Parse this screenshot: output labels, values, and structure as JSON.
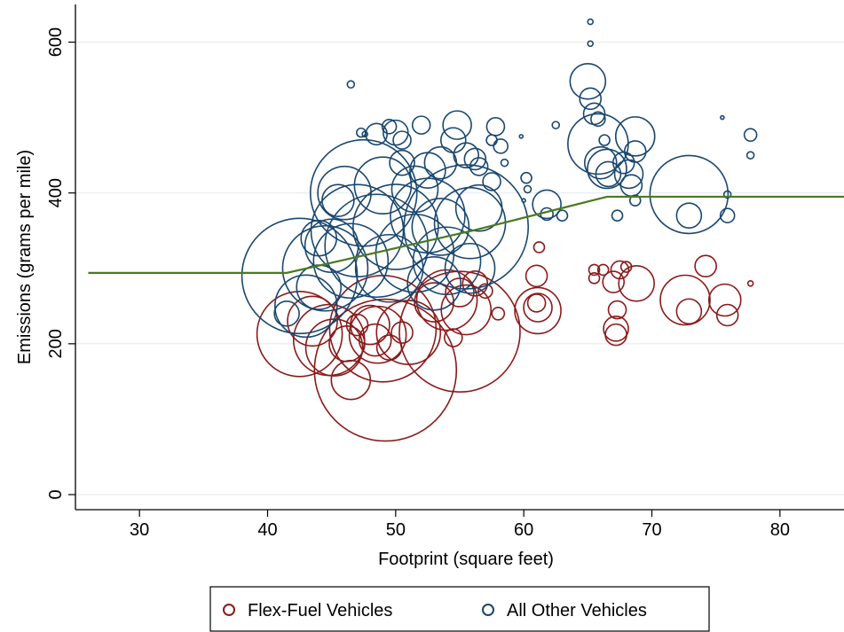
{
  "chart_data": {
    "type": "scatter",
    "title": "",
    "xlabel": "Footprint (square feet)",
    "ylabel": "Emissions (grams per mile)",
    "xlim": [
      25,
      85
    ],
    "ylim": [
      -20,
      650
    ],
    "xticks": [
      30,
      40,
      50,
      60,
      70,
      80
    ],
    "yticks": [
      0,
      200,
      400,
      600
    ],
    "grid": "horizontal",
    "legend": "bottom",
    "series": [
      {
        "name": "Flex-Fuel Vehicles",
        "kind": "bubble",
        "color": "#8b1a1a",
        "points": [
          [
            42.5,
            213,
            48
          ],
          [
            44.8,
            205,
            40
          ],
          [
            45.2,
            195,
            32
          ],
          [
            43.5,
            230,
            28
          ],
          [
            46.2,
            200,
            20
          ],
          [
            46.5,
            152,
            22
          ],
          [
            49.2,
            165,
            80
          ],
          [
            49.0,
            220,
            60
          ],
          [
            48.6,
            212,
            32
          ],
          [
            48.0,
            225,
            22
          ],
          [
            48.4,
            205,
            18
          ],
          [
            49.5,
            195,
            14
          ],
          [
            50.5,
            215,
            12
          ],
          [
            55.0,
            216,
            68
          ],
          [
            54.0,
            258,
            34
          ],
          [
            53.0,
            255,
            22
          ],
          [
            55.5,
            245,
            28
          ],
          [
            56.2,
            280,
            14
          ],
          [
            57.0,
            270,
            8
          ],
          [
            54.5,
            208,
            10
          ],
          [
            55.0,
            268,
            16
          ],
          [
            58.0,
            240,
            7
          ],
          [
            61.1,
            244,
            26
          ],
          [
            61.1,
            248,
            16
          ],
          [
            61.0,
            254,
            10
          ],
          [
            61.0,
            290,
            12
          ],
          [
            61.2,
            328,
            6
          ],
          [
            65.5,
            298,
            6
          ],
          [
            65.5,
            287,
            6
          ],
          [
            66.2,
            298,
            6
          ],
          [
            67.2,
            220,
            14
          ],
          [
            67.2,
            212,
            12
          ],
          [
            67.3,
            245,
            10
          ],
          [
            67.0,
            282,
            12
          ],
          [
            67.5,
            298,
            10
          ],
          [
            68.0,
            302,
            6
          ],
          [
            68.8,
            280,
            20
          ],
          [
            72.6,
            258,
            28
          ],
          [
            72.9,
            243,
            14
          ],
          [
            74.2,
            303,
            12
          ],
          [
            75.7,
            258,
            18
          ],
          [
            75.9,
            238,
            12
          ],
          [
            77.7,
            280,
            3
          ],
          [
            51.0,
            215,
            36
          ],
          [
            47.0,
            225,
            12
          ]
        ]
      },
      {
        "name": "All Other Vehicles",
        "kind": "bubble",
        "color": "#1a476f",
        "points": [
          [
            42.5,
            290,
            65
          ],
          [
            44.5,
            300,
            48
          ],
          [
            43.0,
            250,
            35
          ],
          [
            46.5,
            310,
            42
          ],
          [
            45.0,
            330,
            30
          ],
          [
            44.0,
            275,
            25
          ],
          [
            47.5,
            400,
            60
          ],
          [
            46.0,
            400,
            30
          ],
          [
            47.0,
            350,
            52
          ],
          [
            48.5,
            330,
            58
          ],
          [
            50.0,
            355,
            48
          ],
          [
            49.5,
            300,
            38
          ],
          [
            51.5,
            320,
            44
          ],
          [
            52.5,
            370,
            42
          ],
          [
            53.5,
            355,
            32
          ],
          [
            54.0,
            310,
            38
          ],
          [
            55.5,
            355,
            70
          ],
          [
            56.5,
            380,
            26
          ],
          [
            55.8,
            360,
            40
          ],
          [
            49.0,
            410,
            32
          ],
          [
            51.5,
            405,
            26
          ],
          [
            52.5,
            430,
            20
          ],
          [
            53.5,
            440,
            18
          ],
          [
            54.5,
            470,
            14
          ],
          [
            54.8,
            490,
            16
          ],
          [
            52.0,
            490,
            10
          ],
          [
            50.0,
            480,
            14
          ],
          [
            50.5,
            470,
            10
          ],
          [
            48.5,
            478,
            12
          ],
          [
            49.5,
            488,
            8
          ],
          [
            47.3,
            480,
            5
          ],
          [
            47.6,
            478,
            3
          ],
          [
            55.5,
            450,
            14
          ],
          [
            56.2,
            445,
            12
          ],
          [
            56.5,
            435,
            10
          ],
          [
            57.8,
            488,
            10
          ],
          [
            57.5,
            470,
            6
          ],
          [
            58.2,
            462,
            8
          ],
          [
            59.8,
            475,
            2
          ],
          [
            46.5,
            544,
            4
          ],
          [
            60.2,
            420,
            6
          ],
          [
            60.3,
            405,
            4
          ],
          [
            60.0,
            390,
            2
          ],
          [
            61.8,
            385,
            16
          ],
          [
            61.8,
            372,
            7
          ],
          [
            63.0,
            370,
            6
          ],
          [
            65.0,
            548,
            20
          ],
          [
            65.2,
            525,
            12
          ],
          [
            65.5,
            505,
            12
          ],
          [
            65.8,
            498,
            8
          ],
          [
            65.8,
            465,
            34
          ],
          [
            66.0,
            440,
            18
          ],
          [
            66.5,
            432,
            22
          ],
          [
            66.3,
            470,
            6
          ],
          [
            66.6,
            425,
            14
          ],
          [
            65.2,
            627,
            3
          ],
          [
            65.2,
            598,
            3
          ],
          [
            67.3,
            370,
            6
          ],
          [
            67.8,
            440,
            12
          ],
          [
            68.2,
            425,
            16
          ],
          [
            68.4,
            410,
            12
          ],
          [
            68.7,
            475,
            22
          ],
          [
            68.7,
            455,
            12
          ],
          [
            68.7,
            390,
            6
          ],
          [
            72.9,
            398,
            44
          ],
          [
            72.9,
            370,
            14
          ],
          [
            75.5,
            500,
            2
          ],
          [
            75.9,
            398,
            4
          ],
          [
            75.9,
            370,
            8
          ],
          [
            77.7,
            477,
            7
          ],
          [
            77.7,
            450,
            4
          ],
          [
            55.8,
            300,
            28
          ],
          [
            50.5,
            440,
            14
          ],
          [
            44.0,
            340,
            20
          ],
          [
            53.0,
            280,
            30
          ],
          [
            41.5,
            240,
            14
          ],
          [
            45.5,
            390,
            18
          ],
          [
            57.5,
            415,
            10
          ],
          [
            58.5,
            440,
            4
          ],
          [
            62.5,
            490,
            4
          ]
        ]
      },
      {
        "name": "",
        "kind": "line",
        "color": "#4a7a1e",
        "x": [
          26,
          41.5,
          56,
          66.5,
          85
        ],
        "y": [
          294,
          294,
          350,
          395,
          395
        ]
      }
    ]
  },
  "legend": {
    "items": [
      {
        "label": "Flex-Fuel Vehicles",
        "color": "#8b1a1a"
      },
      {
        "label": "All Other Vehicles",
        "color": "#1a476f"
      }
    ]
  }
}
